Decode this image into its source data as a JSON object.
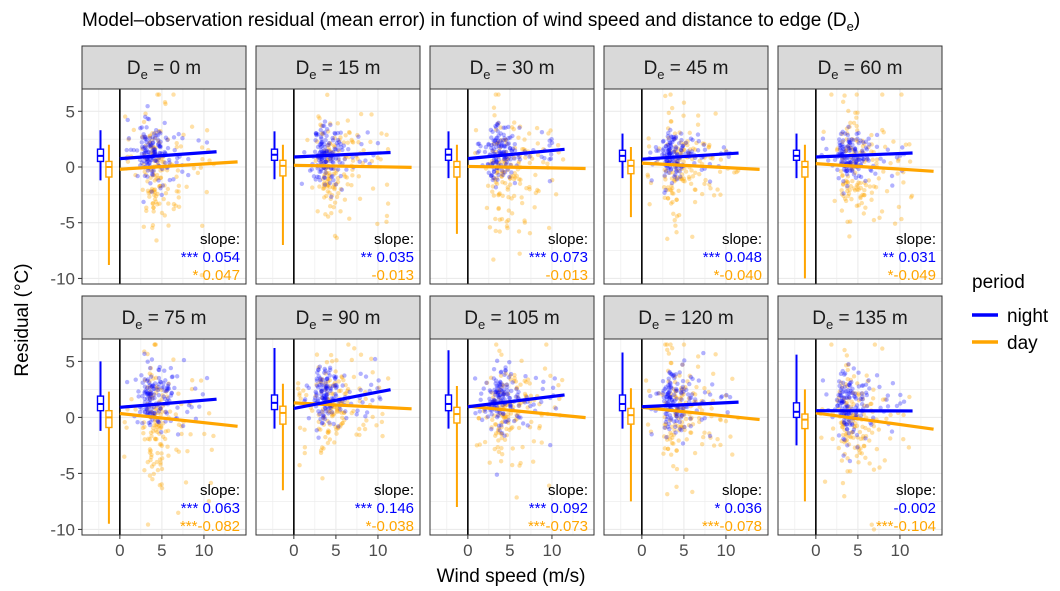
{
  "chart_data": {
    "type": "scatter",
    "title_main": "Model–observation residual (mean error) in function of wind speed and distance to edge (D",
    "title_sub": "e",
    "title_close": ")",
    "xlabel": "Wind speed (m/s)",
    "ylabel": "Residual (°C)",
    "xlim": [
      -4.5,
      15
    ],
    "ylim": [
      -10.5,
      7
    ],
    "x_ticks": [
      0,
      5,
      10
    ],
    "y_ticks_row1": [
      5,
      0,
      -5,
      -10
    ],
    "y_ticks_row2": [
      5,
      0,
      -5,
      -10
    ],
    "grid": true,
    "legend": {
      "title": "period",
      "position": "right",
      "entries": [
        {
          "label": "night",
          "color": "#0000ff"
        },
        {
          "label": "day",
          "color": "#ffa500"
        }
      ]
    },
    "slope_label": "slope:",
    "panels": [
      {
        "strip_prefix": "D",
        "strip_sub": "e",
        "strip_suffix": " = 0 m",
        "night": {
          "slope_text": "*** 0.054",
          "intercept": 0.75,
          "slope": 0.054,
          "x_end": 11.5,
          "center": 1.2,
          "spread": 1.3,
          "box": [
            -1.2,
            0.5,
            1.0,
            1.6,
            3.3
          ]
        },
        "day": {
          "slope_text": "* 0.047",
          "intercept": -0.2,
          "slope": 0.047,
          "x_end": 14,
          "center": -0.3,
          "spread": 2.4,
          "box": [
            -8.8,
            -0.9,
            0.0,
            0.5,
            2.0
          ]
        }
      },
      {
        "strip_prefix": "D",
        "strip_sub": "e",
        "strip_suffix": " = 15 m",
        "night": {
          "slope_text": "** 0.035",
          "intercept": 0.9,
          "slope": 0.035,
          "x_end": 11.5,
          "center": 1.1,
          "spread": 1.2,
          "box": [
            -1.1,
            0.6,
            1.1,
            1.6,
            3.2
          ]
        },
        "day": {
          "slope_text": "-0.013",
          "intercept": 0.15,
          "slope": -0.013,
          "x_end": 14,
          "center": -0.2,
          "spread": 2.1,
          "box": [
            -7.0,
            -0.8,
            0.1,
            0.6,
            2.0
          ]
        }
      },
      {
        "strip_prefix": "D",
        "strip_sub": "e",
        "strip_suffix": " = 30 m",
        "night": {
          "slope_text": "*** 0.073",
          "intercept": 0.75,
          "slope": 0.073,
          "x_end": 11.5,
          "center": 1.1,
          "spread": 1.3,
          "box": [
            -1.0,
            0.6,
            1.1,
            1.6,
            3.2
          ]
        },
        "day": {
          "slope_text": "-0.013",
          "intercept": 0.05,
          "slope": -0.013,
          "x_end": 14,
          "center": -0.3,
          "spread": 2.2,
          "box": [
            -6.0,
            -0.9,
            0.0,
            0.5,
            2.0
          ]
        }
      },
      {
        "strip_prefix": "D",
        "strip_sub": "e",
        "strip_suffix": " = 45 m",
        "night": {
          "slope_text": "*** 0.048",
          "intercept": 0.7,
          "slope": 0.048,
          "x_end": 11.5,
          "center": 1.0,
          "spread": 1.1,
          "box": [
            -1.0,
            0.5,
            1.0,
            1.5,
            3.0
          ]
        },
        "day": {
          "slope_text": "*-0.040",
          "intercept": 0.35,
          "slope": -0.04,
          "x_end": 14,
          "center": -0.1,
          "spread": 1.8,
          "box": [
            -4.5,
            -0.6,
            0.1,
            0.6,
            1.8
          ]
        }
      },
      {
        "strip_prefix": "D",
        "strip_sub": "e",
        "strip_suffix": " = 60 m",
        "night": {
          "slope_text": "** 0.031",
          "intercept": 0.9,
          "slope": 0.031,
          "x_end": 11.5,
          "center": 1.0,
          "spread": 1.1,
          "box": [
            -1.0,
            0.6,
            1.0,
            1.5,
            3.0
          ]
        },
        "day": {
          "slope_text": "*-0.049",
          "intercept": 0.3,
          "slope": -0.049,
          "x_end": 14,
          "center": -0.3,
          "spread": 2.3,
          "box": [
            -10.0,
            -0.9,
            0.0,
            0.5,
            2.0
          ]
        }
      },
      {
        "strip_prefix": "D",
        "strip_sub": "e",
        "strip_suffix": " = 75 m",
        "night": {
          "slope_text": "*** 0.063",
          "intercept": 0.9,
          "slope": 0.063,
          "x_end": 11.5,
          "center": 1.5,
          "spread": 1.4,
          "box": [
            -1.2,
            0.6,
            1.2,
            1.9,
            5.0
          ]
        },
        "day": {
          "slope_text": "***-0.082",
          "intercept": 0.35,
          "slope": -0.082,
          "x_end": 14,
          "center": -0.3,
          "spread": 2.4,
          "box": [
            -9.5,
            -0.9,
            0.0,
            0.6,
            2.3
          ]
        }
      },
      {
        "strip_prefix": "D",
        "strip_sub": "e",
        "strip_suffix": " = 90 m",
        "night": {
          "slope_text": "*** 0.146",
          "intercept": 0.8,
          "slope": 0.146,
          "x_end": 11.5,
          "center": 1.8,
          "spread": 1.4,
          "box": [
            -1.0,
            0.7,
            1.3,
            2.0,
            6.2
          ]
        },
        "day": {
          "slope_text": "*-0.038",
          "intercept": 1.3,
          "slope": -0.038,
          "x_end": 14,
          "center": 0.8,
          "spread": 1.9,
          "box": [
            -6.5,
            -0.6,
            0.4,
            1.0,
            3.0
          ]
        }
      },
      {
        "strip_prefix": "D",
        "strip_sub": "e",
        "strip_suffix": " = 105 m",
        "night": {
          "slope_text": "*** 0.092",
          "intercept": 0.95,
          "slope": 0.092,
          "x_end": 11.5,
          "center": 1.6,
          "spread": 1.4,
          "box": [
            -1.0,
            0.6,
            1.2,
            2.0,
            6.0
          ]
        },
        "day": {
          "slope_text": "***-0.073",
          "intercept": 1.0,
          "slope": -0.073,
          "x_end": 14,
          "center": 0.4,
          "spread": 2.1,
          "box": [
            -8.0,
            -0.5,
            0.3,
            0.9,
            2.8
          ]
        }
      },
      {
        "strip_prefix": "D",
        "strip_sub": "e",
        "strip_suffix": " = 120 m",
        "night": {
          "slope_text": "* 0.036",
          "intercept": 0.95,
          "slope": 0.036,
          "x_end": 11.5,
          "center": 1.5,
          "spread": 1.5,
          "box": [
            -1.0,
            0.6,
            1.2,
            2.0,
            5.8
          ]
        },
        "day": {
          "slope_text": "***-0.078",
          "intercept": 0.9,
          "slope": -0.078,
          "x_end": 14,
          "center": 0.2,
          "spread": 2.0,
          "box": [
            -7.5,
            -0.6,
            0.2,
            0.8,
            2.6
          ]
        }
      },
      {
        "strip_prefix": "D",
        "strip_sub": "e",
        "strip_suffix": " = 135 m",
        "night": {
          "slope_text": "-0.002",
          "intercept": 0.6,
          "slope": -0.002,
          "x_end": 11.5,
          "center": 1.2,
          "spread": 1.5,
          "box": [
            -2.5,
            0.0,
            0.5,
            1.3,
            5.6
          ]
        },
        "day": {
          "slope_text": "***-0.104",
          "intercept": 0.4,
          "slope": -0.104,
          "x_end": 14,
          "center": -0.4,
          "spread": 2.2,
          "box": [
            -7.5,
            -1.0,
            -0.2,
            0.3,
            2.5
          ]
        }
      }
    ]
  }
}
